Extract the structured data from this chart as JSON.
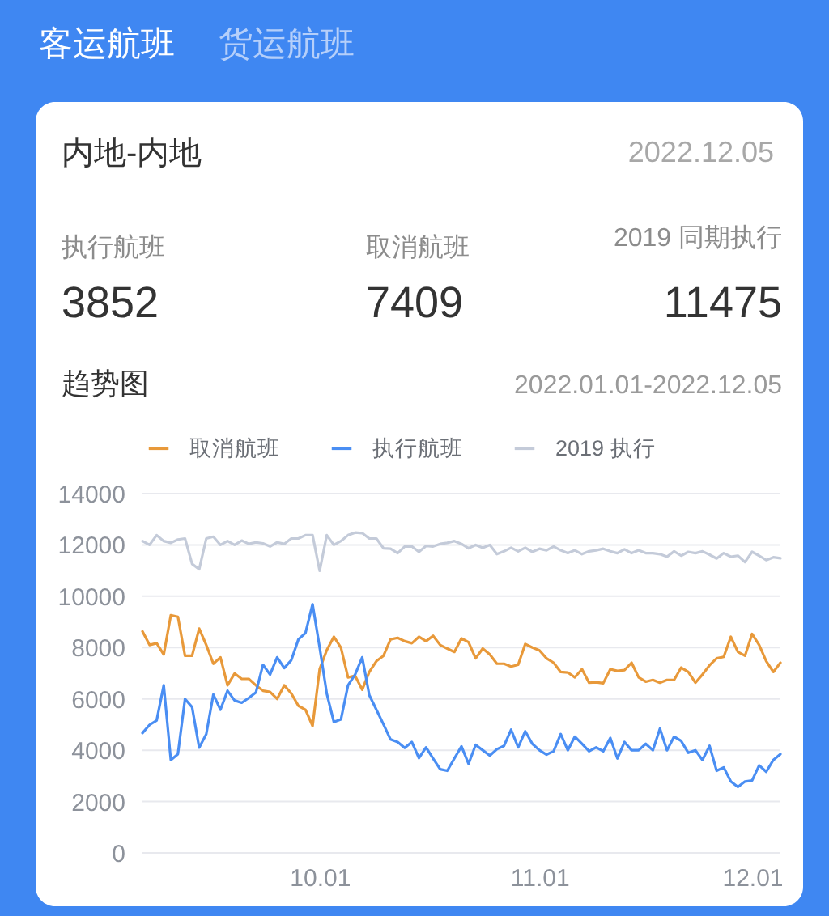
{
  "chart_data": {
    "type": "line",
    "title": "趋势图",
    "subtitle": "2022.01.01-2022.12.05",
    "annotations": [
      "客运航班",
      "货运航班",
      "内地-内地",
      "2022.12.05",
      "执行航班",
      "取消航班",
      "2019 同期执行",
      "3852",
      "7409",
      "11475"
    ],
    "x": [
      "2022-09-06",
      "2022-09-07",
      "2022-09-08",
      "2022-09-09",
      "2022-09-10",
      "2022-09-11",
      "2022-09-12",
      "2022-09-13",
      "2022-09-14",
      "2022-09-15",
      "2022-09-16",
      "2022-09-17",
      "2022-09-18",
      "2022-09-19",
      "2022-09-20",
      "2022-09-21",
      "2022-09-22",
      "2022-09-23",
      "2022-09-24",
      "2022-09-25",
      "2022-09-26",
      "2022-09-27",
      "2022-09-28",
      "2022-09-29",
      "2022-09-30",
      "2022-10-01",
      "2022-10-02",
      "2022-10-03",
      "2022-10-04",
      "2022-10-05",
      "2022-10-06",
      "2022-10-07",
      "2022-10-08",
      "2022-10-09",
      "2022-10-10",
      "2022-10-11",
      "2022-10-12",
      "2022-10-13",
      "2022-10-14",
      "2022-10-15",
      "2022-10-16",
      "2022-10-17",
      "2022-10-18",
      "2022-10-19",
      "2022-10-20",
      "2022-10-21",
      "2022-10-22",
      "2022-10-23",
      "2022-10-24",
      "2022-10-25",
      "2022-10-26",
      "2022-10-27",
      "2022-10-28",
      "2022-10-29",
      "2022-10-30",
      "2022-10-31",
      "2022-11-01",
      "2022-11-02",
      "2022-11-03",
      "2022-11-04",
      "2022-11-05",
      "2022-11-06",
      "2022-11-07",
      "2022-11-08",
      "2022-11-09",
      "2022-11-10",
      "2022-11-11",
      "2022-11-12",
      "2022-11-13",
      "2022-11-14",
      "2022-11-15",
      "2022-11-16",
      "2022-11-17",
      "2022-11-18",
      "2022-11-19",
      "2022-11-20",
      "2022-11-21",
      "2022-11-22",
      "2022-11-23",
      "2022-11-24",
      "2022-11-25",
      "2022-11-26",
      "2022-11-27",
      "2022-11-28",
      "2022-11-29",
      "2022-11-30",
      "2022-12-01",
      "2022-12-02",
      "2022-12-03",
      "2022-12-04",
      "2022-12-05"
    ],
    "xlim": [
      "2022-09-06",
      "2022-12-05"
    ],
    "xticks": [
      {
        "value": "2022-10-01",
        "label": "10.01"
      },
      {
        "value": "2022-11-01",
        "label": "11.01"
      },
      {
        "value": "2022-12-01",
        "label": "12.01"
      }
    ],
    "ylim": [
      0,
      14000
    ],
    "yticks": [
      0,
      2000,
      4000,
      6000,
      8000,
      10000,
      12000,
      14000
    ],
    "grid": "y",
    "legend": "top",
    "series": [
      {
        "name": "取消航班",
        "color": "#e8993a",
        "values": [
          8630,
          8100,
          8170,
          7730,
          9260,
          9200,
          7680,
          7680,
          8740,
          8100,
          7370,
          7620,
          6530,
          6990,
          6780,
          6780,
          6530,
          6320,
          6270,
          6000,
          6530,
          6210,
          5730,
          5580,
          4950,
          7160,
          7900,
          8420,
          8000,
          6840,
          6900,
          6360,
          7050,
          7470,
          7680,
          8320,
          8380,
          8250,
          8170,
          8420,
          8250,
          8460,
          8100,
          7960,
          7830,
          8360,
          8210,
          7580,
          7960,
          7730,
          7370,
          7370,
          7260,
          7330,
          8140,
          8000,
          7890,
          7580,
          7410,
          7050,
          7030,
          6840,
          7160,
          6630,
          6650,
          6610,
          7160,
          7090,
          7120,
          7410,
          6840,
          6670,
          6740,
          6630,
          6740,
          6740,
          7220,
          7050,
          6630,
          6950,
          7310,
          7580,
          7640,
          8420,
          7830,
          7680,
          8530,
          8100,
          7470,
          7050,
          7410
        ]
      },
      {
        "name": "执行航班",
        "color": "#4a8ef3",
        "values": [
          4670,
          4990,
          5160,
          6530,
          3620,
          3850,
          6000,
          5680,
          4100,
          4630,
          6170,
          5580,
          6320,
          5940,
          5850,
          6040,
          6250,
          7330,
          6950,
          7620,
          7200,
          7510,
          8320,
          8570,
          9690,
          8000,
          6210,
          5100,
          5200,
          6530,
          6950,
          7620,
          6150,
          5580,
          5010,
          4420,
          4320,
          4090,
          4320,
          3690,
          4110,
          3680,
          3260,
          3200,
          3680,
          4150,
          3470,
          4210,
          4000,
          3790,
          4040,
          4170,
          4800,
          4110,
          4740,
          4250,
          4000,
          3830,
          3960,
          4630,
          4000,
          4530,
          4250,
          3960,
          4110,
          3960,
          4480,
          3680,
          4320,
          4000,
          4000,
          4250,
          4000,
          4840,
          4000,
          4530,
          4360,
          3900,
          4000,
          3620,
          4170,
          3200,
          3330,
          2780,
          2570,
          2780,
          2820,
          3410,
          3160,
          3620,
          3850
        ]
      },
      {
        "name": "2019 执行",
        "color": "#c4cbd9",
        "values": [
          12150,
          12000,
          12380,
          12150,
          12080,
          12210,
          12250,
          11260,
          11050,
          12250,
          12320,
          12000,
          12150,
          12000,
          12170,
          12040,
          12100,
          12060,
          11940,
          12100,
          12040,
          12250,
          12250,
          12380,
          12380,
          10990,
          12380,
          12000,
          12150,
          12380,
          12480,
          12460,
          12250,
          12250,
          11870,
          11850,
          11680,
          11940,
          11940,
          11730,
          11960,
          11940,
          12040,
          12080,
          12150,
          12040,
          11870,
          12000,
          11890,
          12000,
          11640,
          11750,
          11890,
          11750,
          11890,
          11730,
          11850,
          11790,
          11940,
          11790,
          11680,
          11790,
          11640,
          11750,
          11790,
          11850,
          11750,
          11680,
          11830,
          11680,
          11790,
          11680,
          11680,
          11640,
          11540,
          11750,
          11580,
          11730,
          11680,
          11750,
          11620,
          11470,
          11680,
          11540,
          11580,
          11330,
          11730,
          11580,
          11410,
          11520,
          11480
        ]
      }
    ]
  }
}
